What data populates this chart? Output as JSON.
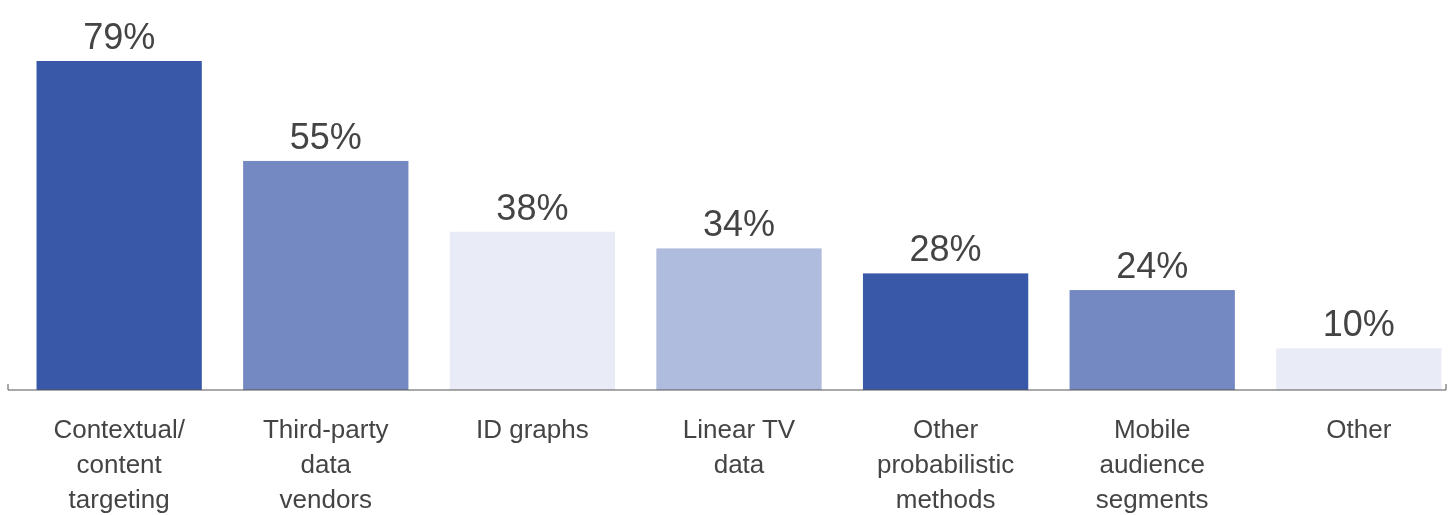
{
  "chart_data": {
    "type": "bar",
    "categories": [
      "Contextual/content targeting",
      "Third-party data vendors",
      "ID graphs",
      "Linear TV data",
      "Other probabilistic methods",
      "Mobile audience segments",
      "Other"
    ],
    "values": [
      79,
      55,
      38,
      34,
      28,
      24,
      10
    ],
    "colors": [
      "#3a58a8",
      "#7489c2",
      "#e9ecf6",
      "#b0bcdd",
      "#3a58a8",
      "#7489c2",
      "#e9ecf6"
    ],
    "value_labels": [
      "79%",
      "55%",
      "38%",
      "34%",
      "28%",
      "24%",
      "10%"
    ]
  }
}
